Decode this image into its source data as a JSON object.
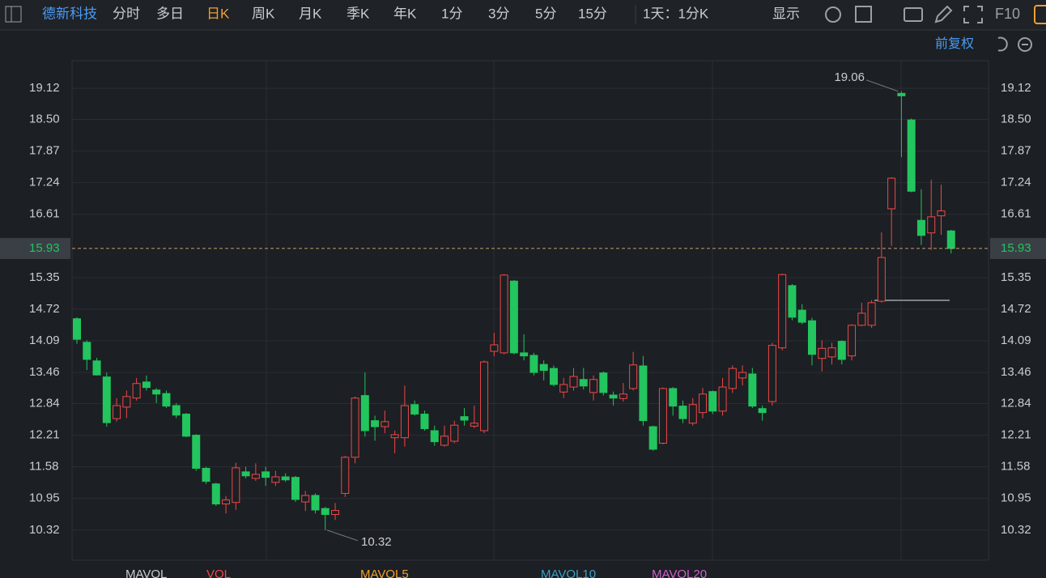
{
  "toolbar": {
    "stock": "德新科技",
    "periods": [
      "分时",
      "多日",
      "日K",
      "周K",
      "月K",
      "季K",
      "年K",
      "1分",
      "3分",
      "5分",
      "15分"
    ],
    "range": "1天：1分K",
    "display": "显示",
    "f10": "F10"
  },
  "adjust": "前复权",
  "indicator": {
    "labels": [
      "MAVOL",
      "VOL",
      "MAVOL5",
      "MAVOL10",
      "MAVOL20"
    ]
  },
  "chart_data": {
    "type": "candlestick",
    "up_color": "#f04848",
    "down_color": "#22c55e",
    "grid": true,
    "ylim": [
      9.72,
      19.67
    ],
    "yticks": [
      19.12,
      {
        "value": 18.5,
        "label": "18.50"
      },
      17.87,
      17.24,
      16.61,
      15.35,
      14.72,
      14.09,
      13.46,
      12.84,
      12.21,
      11.58,
      10.95,
      10.32
    ],
    "open": [
      14.53,
      14.06,
      13.69,
      13.37,
      12.54,
      12.77,
      12.95,
      13.27,
      13.11,
      13.04,
      12.8,
      12.63,
      12.21,
      11.55,
      11.24,
      10.84,
      10.87,
      11.48,
      11.35,
      11.48,
      11.27,
      11.38,
      11.37,
      10.88,
      11.01,
      10.75,
      10.63,
      11.05,
      11.77,
      13.0,
      12.5,
      12.38,
      12.16,
      12.16,
      12.82,
      12.63,
      12.3,
      12.01,
      12.09,
      12.58,
      12.39,
      12.3,
      13.88,
      13.85,
      15.28,
      13.85,
      13.8,
      13.62,
      13.54,
      13.07,
      13.17,
      13.32,
      13.06,
      13.45,
      13.01,
      12.94,
      13.14,
      13.59,
      12.38,
      12.05,
      13.14,
      12.79,
      12.45,
      12.66,
      13.08,
      12.69,
      13.14,
      13.35,
      13.43,
      12.74,
      12.88,
      13.95,
      15.19,
      14.7,
      14.49,
      13.74,
      13.77,
      14.08,
      13.79,
      14.4,
      14.4,
      14.88,
      16.72,
      19.02,
      18.49,
      16.49,
      16.24,
      16.58,
      16.28
    ],
    "high": [
      14.56,
      14.1,
      13.75,
      13.46,
      12.95,
      13.1,
      13.35,
      13.4,
      13.15,
      13.1,
      12.85,
      12.65,
      12.23,
      11.58,
      11.26,
      11.0,
      11.66,
      11.58,
      11.65,
      11.58,
      11.5,
      11.45,
      11.4,
      11.1,
      11.05,
      10.78,
      10.86,
      11.8,
      12.98,
      13.46,
      12.6,
      12.7,
      12.3,
      13.2,
      12.9,
      12.7,
      12.4,
      12.4,
      12.5,
      12.75,
      12.8,
      13.7,
      14.25,
      15.42,
      15.3,
      14.22,
      13.85,
      13.7,
      13.6,
      13.35,
      13.55,
      13.55,
      13.4,
      13.48,
      13.08,
      13.25,
      13.87,
      13.79,
      12.4,
      13.16,
      13.17,
      12.9,
      12.95,
      13.15,
      13.1,
      13.35,
      13.6,
      13.6,
      13.55,
      12.8,
      14.05,
      15.43,
      15.22,
      14.82,
      14.55,
      14.1,
      14.05,
      14.1,
      14.42,
      14.85,
      14.9,
      16.25,
      17.35,
      19.06,
      18.52,
      17.11,
      17.3,
      17.2,
      16.3
    ],
    "low": [
      14.03,
      13.51,
      13.4,
      12.38,
      12.48,
      12.55,
      12.9,
      13.1,
      12.85,
      12.75,
      12.55,
      12.17,
      11.5,
      11.24,
      10.8,
      10.65,
      10.72,
      11.35,
      11.3,
      11.2,
      11.2,
      11.28,
      10.88,
      10.7,
      10.65,
      10.32,
      10.52,
      10.98,
      11.65,
      12.18,
      12.1,
      12.25,
      11.85,
      11.98,
      12.6,
      12.3,
      12.0,
      11.98,
      12.05,
      12.4,
      12.35,
      12.25,
      13.78,
      13.82,
      13.82,
      13.7,
      13.4,
      13.3,
      13.18,
      12.95,
      13.1,
      13.12,
      12.9,
      13.0,
      12.8,
      12.88,
      13.1,
      12.4,
      11.9,
      12.03,
      12.6,
      12.45,
      12.4,
      12.55,
      12.63,
      12.6,
      13.05,
      13.2,
      12.75,
      12.5,
      12.8,
      13.9,
      14.5,
      14.42,
      13.6,
      13.48,
      13.62,
      13.62,
      13.7,
      14.38,
      14.35,
      14.85,
      15.98,
      17.75,
      17.05,
      16.0,
      15.9,
      16.2,
      15.83
    ],
    "close": [
      14.12,
      13.72,
      13.41,
      12.46,
      12.8,
      12.98,
      13.24,
      13.16,
      13.03,
      12.79,
      12.61,
      12.19,
      11.55,
      11.29,
      10.84,
      10.92,
      11.56,
      11.4,
      11.43,
      11.37,
      11.38,
      11.32,
      10.93,
      11.01,
      10.72,
      10.63,
      10.71,
      11.77,
      12.95,
      12.3,
      12.38,
      12.48,
      12.22,
      12.8,
      12.63,
      12.34,
      12.08,
      12.19,
      12.41,
      12.51,
      12.45,
      13.67,
      14.01,
      15.4,
      13.85,
      13.79,
      13.46,
      13.5,
      13.22,
      13.22,
      13.38,
      13.19,
      13.32,
      13.06,
      12.95,
      13.03,
      13.61,
      12.5,
      11.93,
      13.14,
      12.79,
      12.54,
      12.82,
      13.03,
      12.69,
      13.17,
      13.54,
      13.46,
      12.79,
      12.66,
      14.0,
      15.41,
      14.56,
      14.46,
      13.82,
      13.94,
      13.95,
      13.72,
      14.4,
      14.64,
      14.85,
      15.75,
      17.33,
      18.97,
      17.07,
      16.19,
      16.56,
      16.68,
      15.93
    ]
  }
}
